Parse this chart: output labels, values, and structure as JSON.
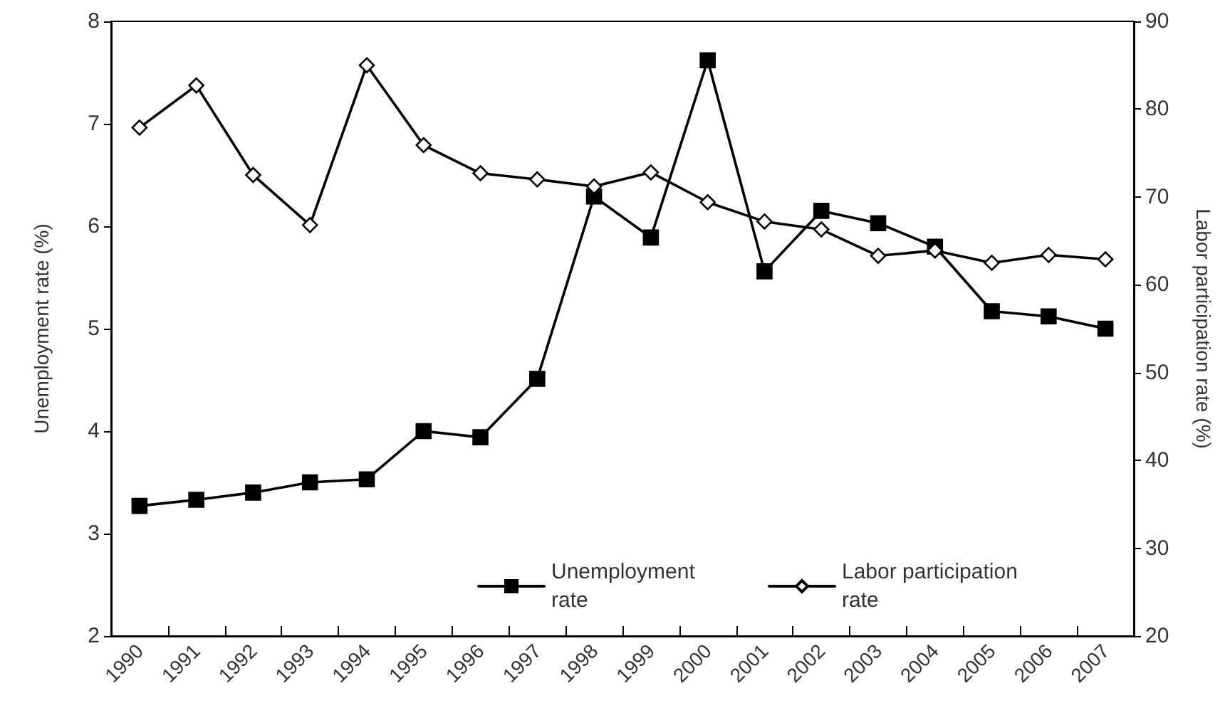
{
  "chart_data": {
    "type": "line",
    "categories": [
      "1990",
      "1991",
      "1992",
      "1993",
      "1994",
      "1995",
      "1996",
      "1997",
      "1998",
      "1999",
      "2000",
      "2001",
      "2002",
      "2003",
      "2004",
      "2005",
      "2006",
      "2007"
    ],
    "series": [
      {
        "name": "Unemployment rate",
        "color": "#000000",
        "marker": "square",
        "values": [
          3.27,
          3.33,
          3.4,
          3.5,
          3.53,
          4.0,
          3.94,
          4.51,
          6.29,
          5.89,
          7.62,
          5.56,
          6.15,
          6.03,
          5.8,
          5.17,
          5.12,
          5.0
        ]
      },
      {
        "name": "Labor participation rate",
        "color": "#000000",
        "marker": "diamond",
        "axis": "y2",
        "values": [
          77.9,
          82.7,
          72.5,
          66.8,
          85.0,
          75.9,
          72.7,
          72.0,
          71.2,
          72.8,
          69.4,
          67.2,
          66.3,
          63.3,
          63.9,
          62.5,
          63.4,
          62.9
        ]
      }
    ],
    "ylabel": "Unemployment rate (%)",
    "y2label": "Labor participation rate (%)",
    "ylim": [
      2,
      8
    ],
    "yticks": [
      2,
      3,
      4,
      5,
      6,
      7,
      8
    ],
    "y2lim": [
      20,
      90
    ],
    "y2ticks": [
      20,
      30,
      40,
      50,
      60,
      70,
      80,
      90
    ],
    "grid": false,
    "legend": "bottom",
    "line_style": "solid"
  }
}
